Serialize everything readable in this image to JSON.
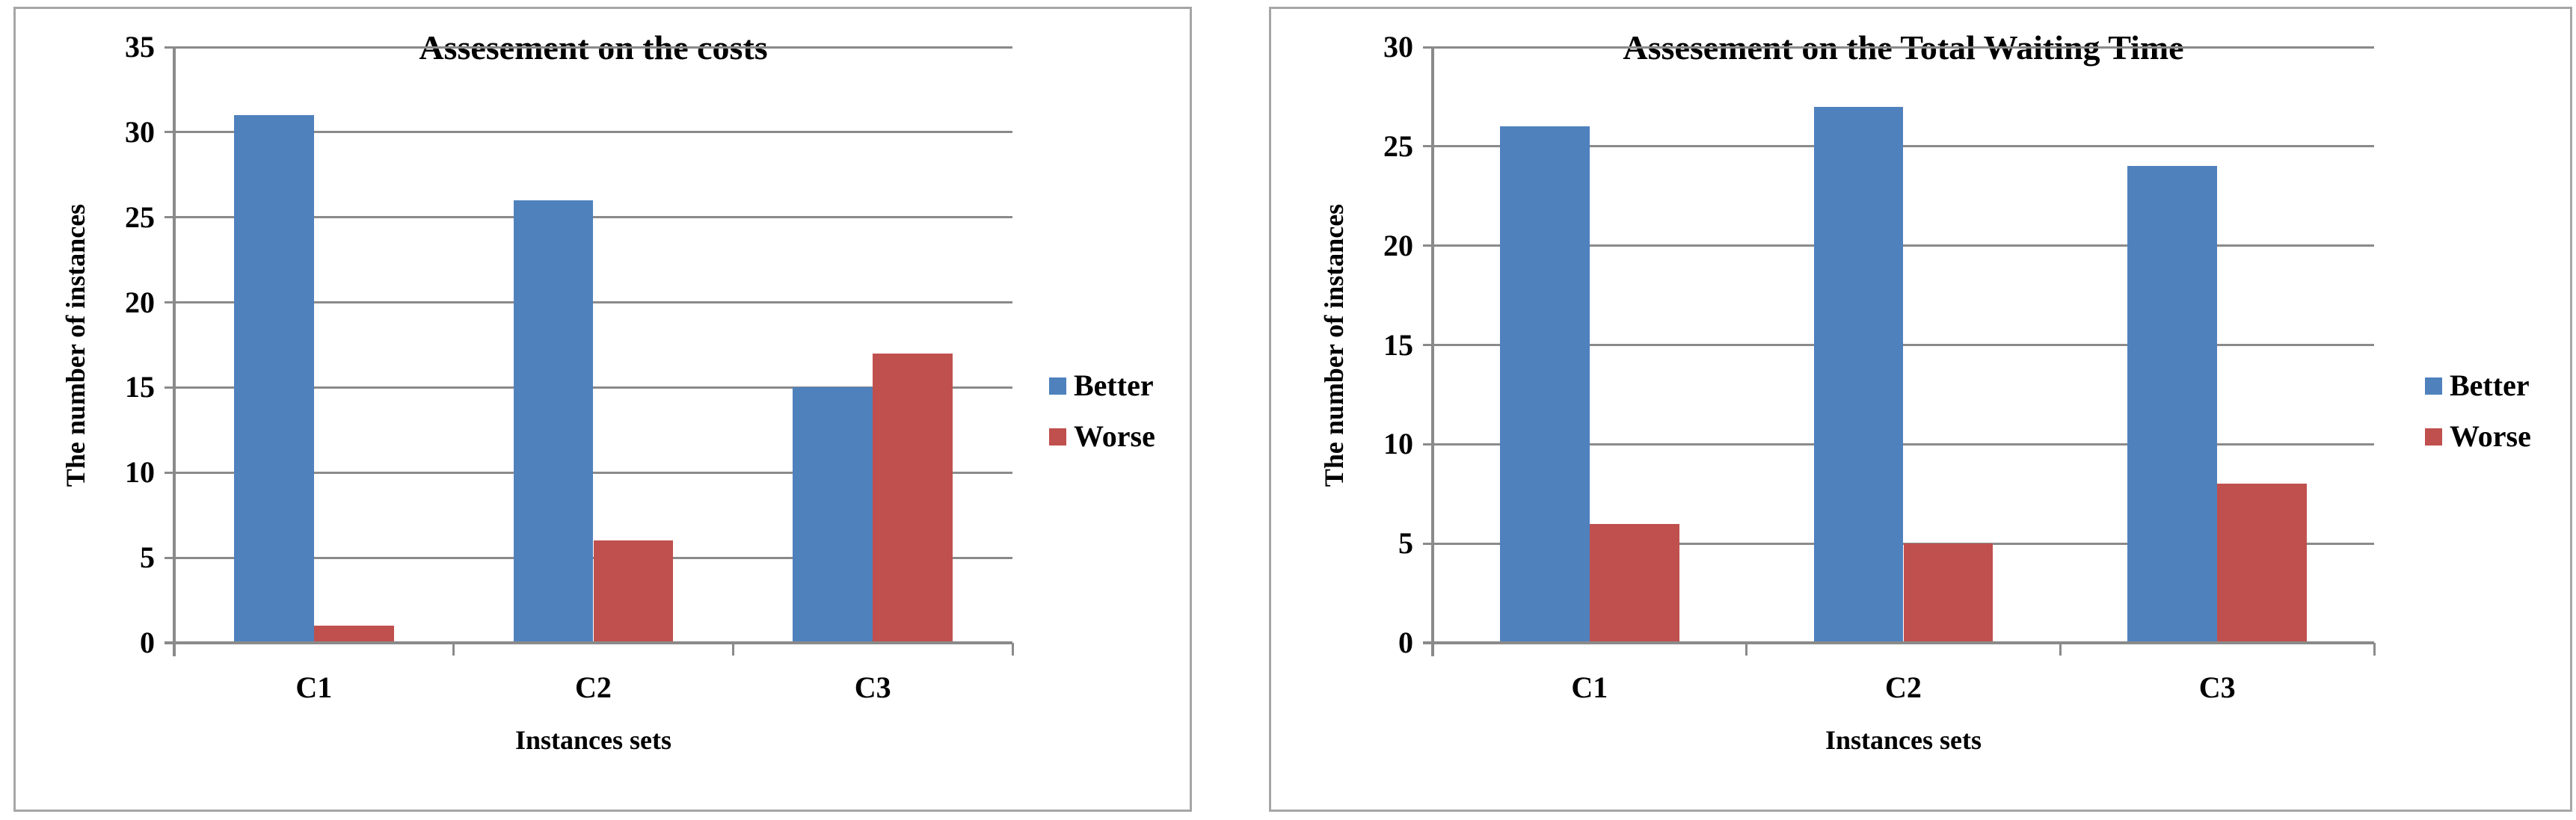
{
  "colors": {
    "better": "#4F81BD",
    "worse": "#C0504D",
    "gridline": "#8A8A8A",
    "axis": "#8A8A8A",
    "panel_border": "#A6A6A6",
    "text": "#000000",
    "background": "#FFFFFF"
  },
  "chart_data": [
    {
      "type": "bar",
      "title": "Assesement on the costs",
      "categories": [
        "C1",
        "C2",
        "C3"
      ],
      "series": [
        {
          "name": "Better",
          "color": "#4F81BD",
          "values": [
            31,
            26,
            15
          ]
        },
        {
          "name": "Worse",
          "color": "#C0504D",
          "values": [
            1,
            6,
            17
          ]
        }
      ],
      "xlabel": "Instances sets",
      "ylabel": "The number of instances",
      "ylim": [
        0,
        35
      ],
      "ytick_step": 5,
      "grid": true,
      "legend_position": "right"
    },
    {
      "type": "bar",
      "title": "Assesement on the Total Waiting Time",
      "categories": [
        "C1",
        "C2",
        "C3"
      ],
      "series": [
        {
          "name": "Better",
          "color": "#4F81BD",
          "values": [
            26,
            27,
            24
          ]
        },
        {
          "name": "Worse",
          "color": "#C0504D",
          "values": [
            6,
            5,
            8
          ]
        }
      ],
      "xlabel": "Instances sets",
      "ylabel": "The number of instances",
      "ylim": [
        0,
        30
      ],
      "ytick_step": 5,
      "grid": true,
      "legend_position": "right"
    }
  ]
}
